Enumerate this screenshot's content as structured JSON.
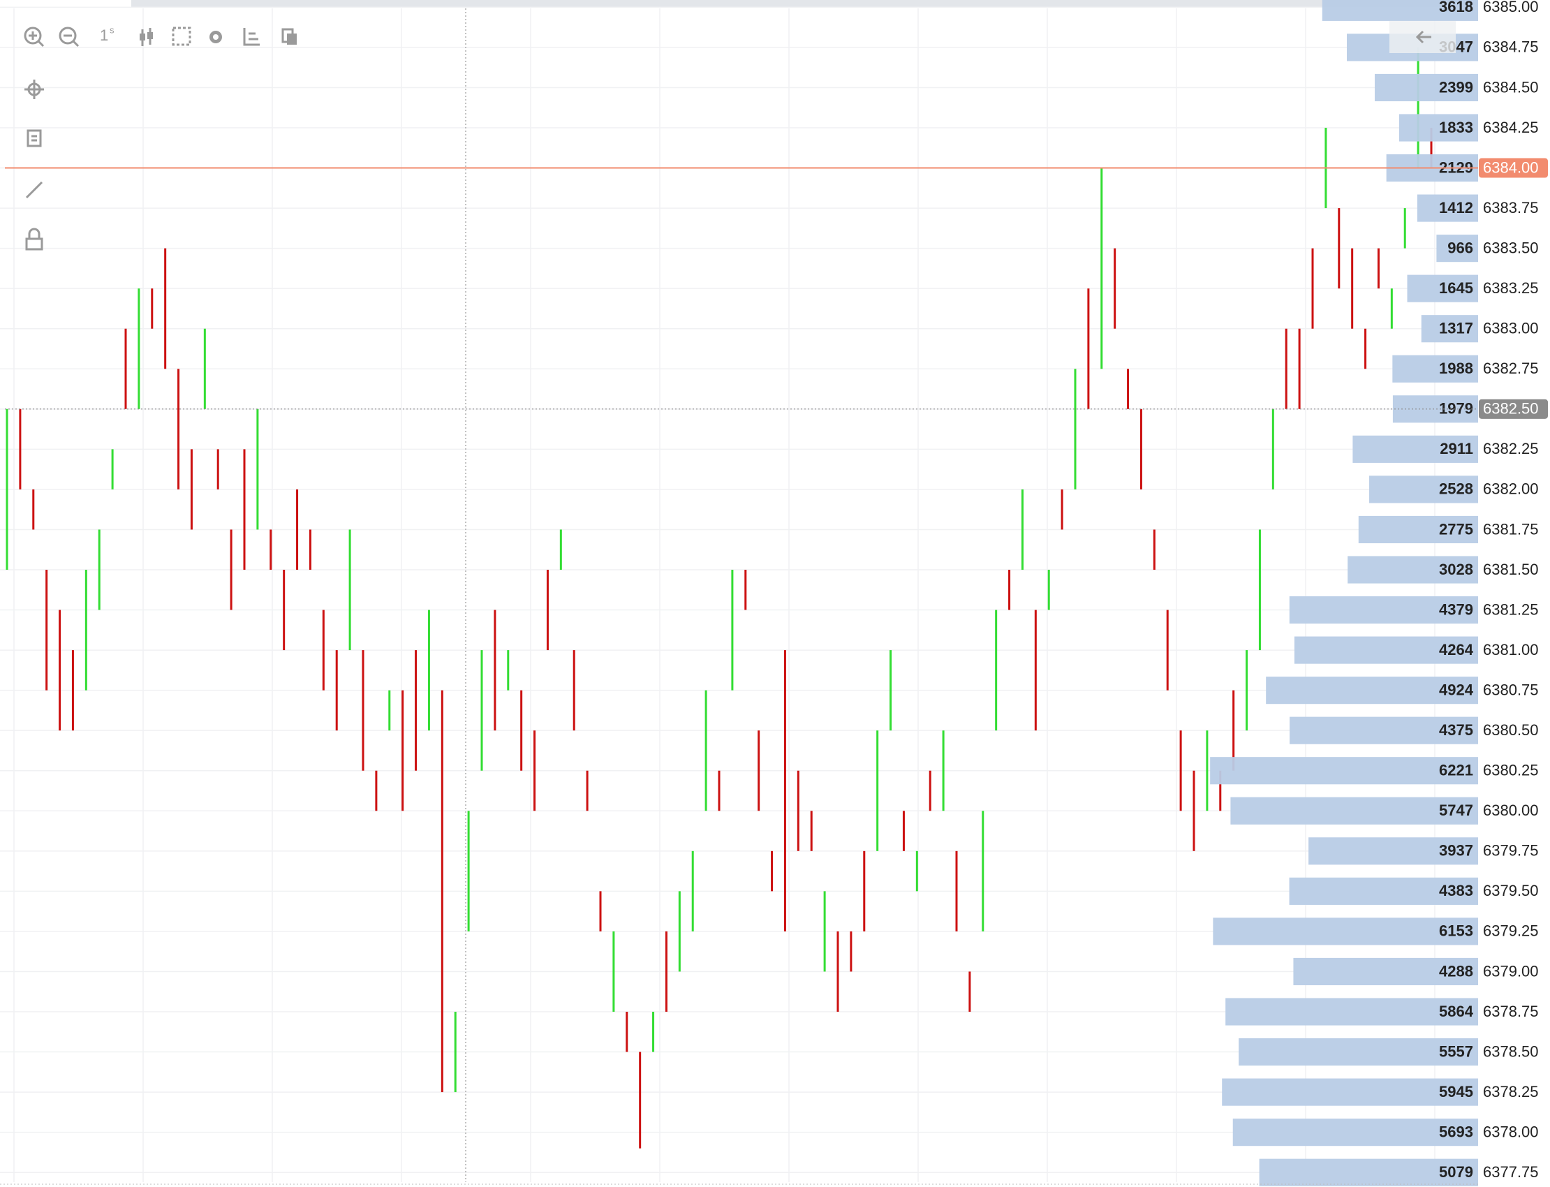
{
  "toolbar": {
    "interval": "1",
    "interval_unit": "s"
  },
  "chart_data": {
    "type": "volume-profile-candles",
    "ylim": [
      6377.69,
      6385.045
    ],
    "yticks": [
      {
        "value": 6385,
        "label": "6385.00"
      },
      {
        "value": 6384.75,
        "label": "6384.75"
      },
      {
        "value": 6384.5,
        "label": "6384.50"
      },
      {
        "value": 6384.25,
        "label": "6384.25"
      },
      {
        "value": 6384,
        "label": "6384.00"
      },
      {
        "value": 6383.75,
        "label": "6383.75"
      },
      {
        "value": 6383.5,
        "label": "6383.50"
      },
      {
        "value": 6383.25,
        "label": "6383.25"
      },
      {
        "value": 6383,
        "label": "6383.00"
      },
      {
        "value": 6382.75,
        "label": "6382.75"
      },
      {
        "value": 6382.5,
        "label": "6382.50"
      },
      {
        "value": 6382.25,
        "label": "6382.25"
      },
      {
        "value": 6382,
        "label": "6382.00"
      },
      {
        "value": 6381.75,
        "label": "6381.75"
      },
      {
        "value": 6381.5,
        "label": "6381.50"
      },
      {
        "value": 6381.25,
        "label": "6381.25"
      },
      {
        "value": 6381,
        "label": "6381.00"
      },
      {
        "value": 6380.75,
        "label": "6380.75"
      },
      {
        "value": 6380.5,
        "label": "6380.50"
      },
      {
        "value": 6380.25,
        "label": "6380.25"
      },
      {
        "value": 6380,
        "label": "6380.00"
      },
      {
        "value": 6379.75,
        "label": "6379.75"
      },
      {
        "value": 6379.5,
        "label": "6379.50"
      },
      {
        "value": 6379.25,
        "label": "6379.25"
      },
      {
        "value": 6379,
        "label": "6379.00"
      },
      {
        "value": 6378.75,
        "label": "6378.75"
      },
      {
        "value": 6378.5,
        "label": "6378.50"
      },
      {
        "value": 6378.25,
        "label": "6378.25"
      },
      {
        "value": 6378,
        "label": "6378.00"
      },
      {
        "value": 6377.75,
        "label": "6377.75"
      }
    ],
    "volumes": [
      3618,
      3047,
      2399,
      1833,
      2129,
      1412,
      966,
      1645,
      1317,
      1988,
      1979,
      2911,
      2528,
      2775,
      3028,
      4379,
      4264,
      4924,
      4375,
      6221,
      5747,
      3937,
      4383,
      6153,
      4288,
      5864,
      5557,
      5945,
      5693,
      5079
    ],
    "profile_color": "#b8cce6",
    "last_price": 6384,
    "last_price_color": "#f28b6e",
    "crosshair_price": 6382.5,
    "crosshair_color": "#8a8a8a",
    "grid": true,
    "up_color": "#33dd33",
    "down_color": "#cc1111",
    "candles": {
      "lows": [
        6381.5,
        6382,
        6381.75,
        6380.75,
        6380.5,
        6380.5,
        6380.75,
        6381.25,
        6382,
        6382.5,
        6382.5,
        6383,
        6382.75,
        6382,
        6381.75,
        6382.5,
        6382,
        6381.25,
        6381.5,
        6381.75,
        6381.5,
        6381,
        6381.5,
        6381.5,
        6380.75,
        6380.5,
        6381,
        6380.25,
        6380,
        6380.5,
        6380,
        6380.25,
        6380.5,
        6378.25,
        6378.25,
        6379.25,
        6380.25,
        6380.5,
        6380.75,
        6380.25,
        6380,
        6381,
        6381.5,
        6380.5,
        6380,
        6379.25,
        6378.75,
        6378.5,
        6377.9,
        6378.5,
        6378.75,
        6379,
        6379.25,
        6380,
        6380,
        6380.75,
        6381.25,
        6380,
        6379.5,
        6379.25,
        6379.75,
        6379.75,
        6379,
        6378.75,
        6379,
        6379.25,
        6379.75,
        6380.5,
        6379.75,
        6379.5,
        6380,
        6380,
        6379.25,
        6378.75,
        6379.25,
        6380.5,
        6381.25,
        6381.5,
        6380.5,
        6381.25,
        6381.75,
        6382,
        6382.5,
        6382.75,
        6383,
        6382.5,
        6382,
        6381.5,
        6380.75,
        6380,
        6379.75,
        6380,
        6380,
        6380.25,
        6380.5,
        6381,
        6382,
        6382.5,
        6382.5,
        6383,
        6383.75,
        6383.25,
        6383,
        6382.75,
        6383.25,
        6383,
        6383.5,
        6384,
        6384
      ],
      "highs": [
        6382.5,
        6382.5,
        6382,
        6381.5,
        6381.25,
        6381,
        6381.5,
        6381.75,
        6382.25,
        6383,
        6383.25,
        6383.25,
        6383.5,
        6382.75,
        6382.25,
        6383,
        6382.25,
        6381.75,
        6382.25,
        6382.5,
        6381.75,
        6381.5,
        6382,
        6381.75,
        6381.25,
        6381,
        6381.75,
        6381,
        6380.25,
        6380.75,
        6380.75,
        6381,
        6381.25,
        6380.75,
        6378.75,
        6380,
        6381,
        6381.25,
        6381,
        6380.75,
        6380.5,
        6381.5,
        6381.75,
        6381,
        6380.25,
        6379.5,
        6379.25,
        6378.75,
        6378.5,
        6378.75,
        6379.25,
        6379.5,
        6379.75,
        6380.75,
        6380.25,
        6381.5,
        6381.5,
        6380.5,
        6379.75,
        6381,
        6380.25,
        6380,
        6379.5,
        6379.25,
        6379.25,
        6379.75,
        6380.5,
        6381,
        6380,
        6379.75,
        6380.25,
        6380.5,
        6379.75,
        6379,
        6380,
        6381.25,
        6381.5,
        6382,
        6381.25,
        6381.5,
        6382,
        6382.75,
        6383.25,
        6384,
        6383.5,
        6382.75,
        6382.5,
        6381.75,
        6381.25,
        6380.5,
        6380.25,
        6380.5,
        6380.25,
        6380.75,
        6381,
        6381.75,
        6382.5,
        6383,
        6383,
        6383.5,
        6384.25,
        6383.75,
        6383.5,
        6383,
        6383.5,
        6383.25,
        6383.75,
        6384.75,
        6384.25
      ],
      "directions": [
        "up",
        "down",
        "down",
        "down",
        "down",
        "down",
        "up",
        "up",
        "up",
        "down",
        "up",
        "down",
        "down",
        "down",
        "down",
        "up",
        "down",
        "down",
        "down",
        "up",
        "down",
        "down",
        "down",
        "down",
        "down",
        "down",
        "up",
        "down",
        "down",
        "up",
        "down",
        "down",
        "up",
        "down",
        "up",
        "up",
        "up",
        "down",
        "up",
        "down",
        "down",
        "down",
        "up",
        "down",
        "down",
        "down",
        "up",
        "down",
        "down",
        "up",
        "down",
        "up",
        "up",
        "up",
        "down",
        "up",
        "down",
        "down",
        "down",
        "down",
        "down",
        "down",
        "up",
        "down",
        "down",
        "down",
        "up",
        "up",
        "down",
        "up",
        "down",
        "up",
        "down",
        "down",
        "up",
        "up",
        "down",
        "up",
        "down",
        "up",
        "down",
        "up",
        "down",
        "up",
        "down",
        "down",
        "down",
        "down",
        "down",
        "down",
        "down",
        "up",
        "down",
        "down",
        "up",
        "up",
        "up",
        "down",
        "down",
        "down",
        "up",
        "down",
        "down",
        "down",
        "down",
        "up",
        "up",
        "up",
        "down"
      ]
    }
  }
}
